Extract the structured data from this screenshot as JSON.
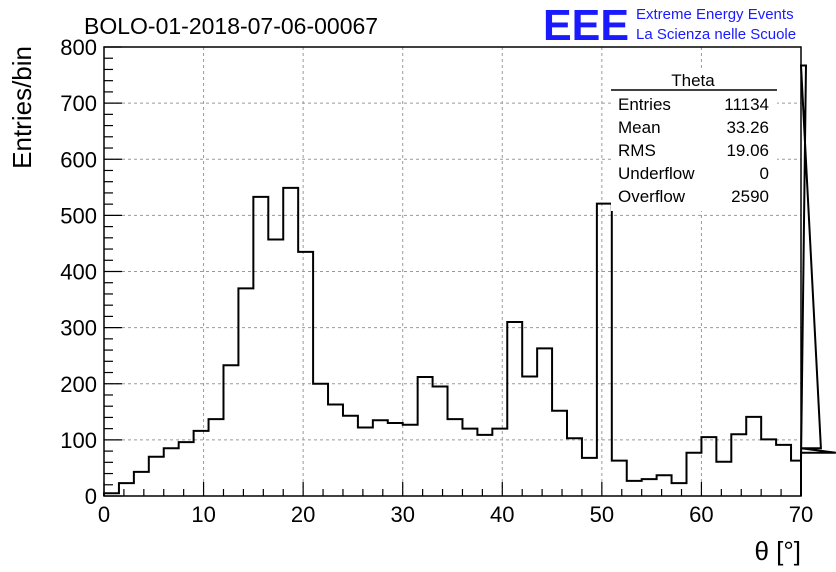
{
  "header": {
    "title": "BOLO-01-2018-07-06-00067",
    "logo_text": "EEE",
    "logo_line1": "Extreme Energy Events",
    "logo_line2": "La Scienza nelle Scuole"
  },
  "stats": {
    "name": "Theta",
    "rows": [
      {
        "label": "Entries",
        "value": "11134"
      },
      {
        "label": "Mean",
        "value": "33.26"
      },
      {
        "label": "RMS",
        "value": "19.06"
      },
      {
        "label": "Underflow",
        "value": "0"
      },
      {
        "label": "Overflow",
        "value": "2590"
      }
    ]
  },
  "colors": {
    "logo": "#1a1aff",
    "line": "#000000",
    "grid": "#9a9a9a"
  },
  "chart_data": {
    "type": "histogram",
    "xlabel": "θ [°]",
    "ylabel": "Entries/bin",
    "xlim": [
      0,
      70
    ],
    "ylim": [
      0,
      800
    ],
    "grid": true,
    "bin_width": 1.5,
    "bin_start": 0,
    "xticks": [
      0,
      10,
      20,
      30,
      40,
      50,
      60,
      70
    ],
    "yticks": [
      0,
      100,
      200,
      300,
      400,
      500,
      600,
      700,
      800
    ],
    "values": [
      5,
      23,
      43,
      70,
      85,
      96,
      116,
      137,
      233,
      370,
      533,
      457,
      549,
      435,
      200,
      163,
      143,
      122,
      135,
      130,
      127,
      212,
      195,
      137,
      120,
      109,
      120,
      310,
      213,
      263,
      152,
      103,
      68,
      521,
      63,
      27,
      30,
      37,
      23,
      77,
      105,
      61,
      110,
      141,
      101,
      91,
      63,
      767,
      85,
      77
    ]
  }
}
